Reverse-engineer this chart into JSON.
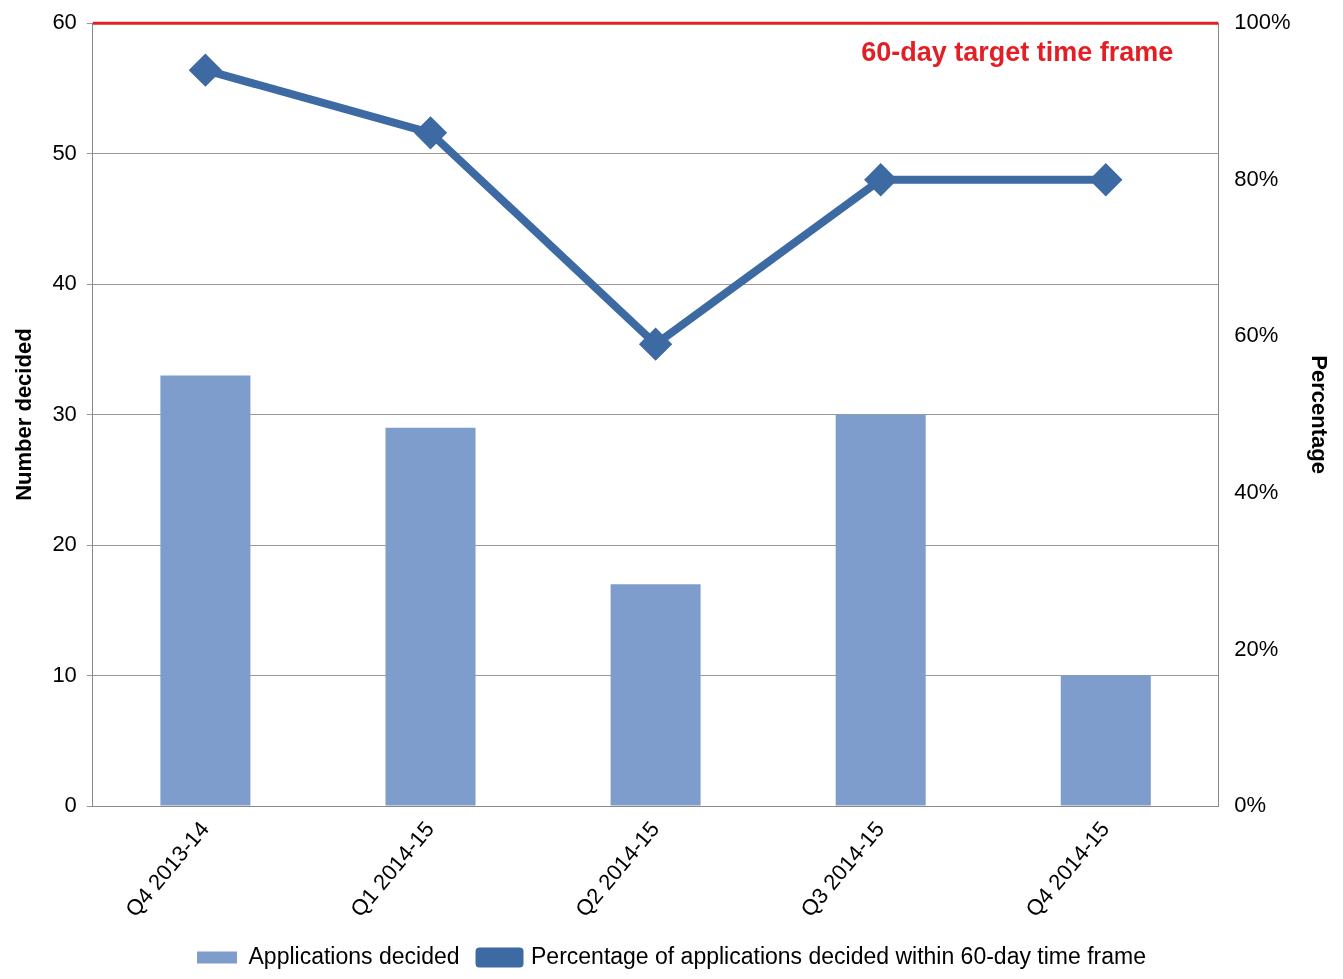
{
  "chart_data": {
    "type": "bar",
    "ylabel": "Number decided",
    "y2label": "Percentage",
    "categories": [
      "Q4 2013-14",
      "Q1 2014-15",
      "Q2 2014-15",
      "Q3 2014-15",
      "Q4 2014-15"
    ],
    "series": [
      {
        "name": "Applications decided",
        "color": "#7f9dcc",
        "values": [
          33,
          29,
          17,
          30,
          10
        ]
      },
      {
        "name": "Percentage of applications decided within 60-day time frame",
        "type": "line",
        "axis": "y2",
        "color": "#3d6aa3",
        "marker": "diamond",
        "values": [
          94,
          86,
          59,
          80,
          80
        ]
      }
    ],
    "ylim": [
      0,
      60
    ],
    "yticks": [
      0,
      10,
      20,
      30,
      40,
      50,
      60
    ],
    "y2lim": [
      0,
      100
    ],
    "y2ticks": [
      {
        "value": 0,
        "label": "0%"
      },
      {
        "value": 20,
        "label": "20%"
      },
      {
        "value": 40,
        "label": "40%"
      },
      {
        "value": 60,
        "label": "60%"
      },
      {
        "value": 80,
        "label": "80%"
      },
      {
        "value": 100,
        "label": "100%"
      }
    ],
    "ref_lines": [
      {
        "axis": "y2",
        "value": 100,
        "label": "60-day target time frame",
        "color": "#e31e24"
      }
    ],
    "grid": "y",
    "legend": "bottom"
  }
}
